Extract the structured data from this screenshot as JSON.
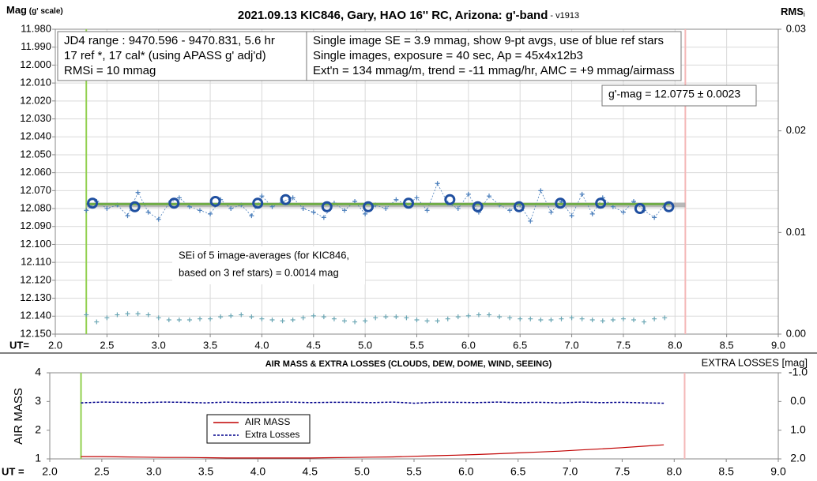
{
  "chart_data": [
    {
      "type": "scatter",
      "title": "2021.09.13 KIC846, Gary, HAO 16'' RC, Arizona: g'-band",
      "title_version": " - v1913",
      "y_label": "Mag",
      "y_label_note": " (g' scale)",
      "y2_label": "RMS",
      "y2_label_sub": "i",
      "x_label": "UT=",
      "xlim": [
        2.0,
        9.0
      ],
      "xticks": [
        {
          "value": 2.0,
          "label": "2.0"
        },
        {
          "value": 2.5,
          "label": "2.5"
        },
        {
          "value": 3.0,
          "label": "3.0"
        },
        {
          "value": 3.5,
          "label": "3.5"
        },
        {
          "value": 4.0,
          "label": "4.0"
        },
        {
          "value": 4.5,
          "label": "4.5"
        },
        {
          "value": 5.0,
          "label": "5.0"
        },
        {
          "value": 5.5,
          "label": "5.5"
        },
        {
          "value": 6.0,
          "label": "6.0"
        },
        {
          "value": 6.5,
          "label": "6.5"
        },
        {
          "value": 7.0,
          "label": "7.0"
        },
        {
          "value": 7.5,
          "label": "7.5"
        },
        {
          "value": 8.0,
          "label": "8.0"
        },
        {
          "value": 8.5,
          "label": "8.5"
        },
        {
          "value": 9.0,
          "label": "9.0"
        }
      ],
      "ylim": [
        12.15,
        11.98
      ],
      "yticks": [
        {
          "value": 11.98,
          "label": "11.980"
        },
        {
          "value": 11.99,
          "label": "11.990"
        },
        {
          "value": 12.0,
          "label": "12.000"
        },
        {
          "value": 12.01,
          "label": "12.010"
        },
        {
          "value": 12.02,
          "label": "12.020"
        },
        {
          "value": 12.03,
          "label": "12.030"
        },
        {
          "value": 12.04,
          "label": "12.040"
        },
        {
          "value": 12.05,
          "label": "12.050"
        },
        {
          "value": 12.06,
          "label": "12.060"
        },
        {
          "value": 12.07,
          "label": "12.070"
        },
        {
          "value": 12.08,
          "label": "12.080"
        },
        {
          "value": 12.09,
          "label": "12.090"
        },
        {
          "value": 12.1,
          "label": "12.100"
        },
        {
          "value": 12.11,
          "label": "12.110"
        },
        {
          "value": 12.12,
          "label": "12.120"
        },
        {
          "value": 12.13,
          "label": "12.130"
        },
        {
          "value": 12.14,
          "label": "12.140"
        },
        {
          "value": 12.15,
          "label": "12.150"
        }
      ],
      "y2lim": [
        0,
        0.03
      ],
      "y2ticks": [
        {
          "value": 0,
          "label": "0.00"
        },
        {
          "value": 0.01,
          "label": "0.01"
        },
        {
          "value": 0.02,
          "label": "0.02"
        },
        {
          "value": 0.03,
          "label": "0.03"
        }
      ],
      "grid": true,
      "vlines": [
        {
          "x": 2.3,
          "color": "#92d050"
        },
        {
          "x": 8.1,
          "color": "#f4b8b8"
        }
      ],
      "series": [
        {
          "mark": "band",
          "color": "#a6a6a6",
          "x": [
            2.3,
            8.1
          ],
          "values": [
            12.078,
            12.078
          ]
        },
        {
          "mark": "plus",
          "color": "#4a7ebb",
          "x": [
            2.3,
            2.4,
            2.5,
            2.6,
            2.7,
            2.8,
            2.9,
            3.0,
            3.1,
            3.2,
            3.3,
            3.4,
            3.5,
            3.6,
            3.7,
            3.8,
            3.9,
            4.0,
            4.1,
            4.2,
            4.3,
            4.4,
            4.5,
            4.6,
            4.7,
            4.8,
            4.9,
            5.0,
            5.1,
            5.2,
            5.3,
            5.4,
            5.5,
            5.6,
            5.7,
            5.8,
            5.9,
            6.0,
            6.1,
            6.2,
            6.3,
            6.4,
            6.5,
            6.6,
            6.7,
            6.8,
            6.9,
            7.0,
            7.1,
            7.2,
            7.3,
            7.4,
            7.5,
            7.6,
            7.7,
            7.8,
            7.9
          ],
          "values": [
            12.081,
            12.076,
            12.08,
            12.078,
            12.084,
            12.071,
            12.082,
            12.086,
            12.077,
            12.074,
            12.079,
            12.081,
            12.083,
            12.075,
            12.08,
            12.078,
            12.084,
            12.073,
            12.079,
            12.076,
            12.074,
            12.08,
            12.082,
            12.085,
            12.077,
            12.081,
            12.076,
            12.083,
            12.078,
            12.08,
            12.075,
            12.078,
            12.074,
            12.081,
            12.066,
            12.077,
            12.08,
            12.072,
            12.082,
            12.073,
            12.078,
            12.081,
            12.078,
            12.087,
            12.07,
            12.082,
            12.076,
            12.084,
            12.072,
            12.083,
            12.074,
            12.079,
            12.082,
            12.076,
            12.081,
            12.085,
            12.078
          ]
        },
        {
          "mark": "line",
          "color": "#70ad47",
          "x": [
            2.3,
            7.95
          ],
          "values": [
            12.0775,
            12.0775
          ]
        },
        {
          "mark": "circle",
          "color": "#1f4fa0",
          "x": [
            2.36,
            2.77,
            3.15,
            3.55,
            3.96,
            4.23,
            4.63,
            5.03,
            5.42,
            5.82,
            6.09,
            6.49,
            6.89,
            7.28,
            7.66,
            7.94
          ],
          "values": [
            12.077,
            12.079,
            12.077,
            12.076,
            12.077,
            12.075,
            12.079,
            12.079,
            12.077,
            12.075,
            12.079,
            12.079,
            12.077,
            12.077,
            12.08,
            12.079
          ]
        },
        {
          "mark": "plus",
          "axis": "y2",
          "color": "#6aa6b4",
          "x": [
            2.3,
            2.4,
            2.5,
            2.6,
            2.7,
            2.8,
            2.9,
            3.0,
            3.1,
            3.2,
            3.3,
            3.4,
            3.5,
            3.6,
            3.7,
            3.8,
            3.9,
            4.0,
            4.1,
            4.2,
            4.3,
            4.4,
            4.5,
            4.6,
            4.7,
            4.8,
            4.9,
            5.0,
            5.1,
            5.2,
            5.3,
            5.4,
            5.5,
            5.6,
            5.7,
            5.8,
            5.9,
            6.0,
            6.1,
            6.2,
            6.3,
            6.4,
            6.5,
            6.6,
            6.7,
            6.8,
            6.9,
            7.0,
            7.1,
            7.2,
            7.3,
            7.4,
            7.5,
            7.6,
            7.7,
            7.8,
            7.9
          ],
          "values": [
            0.0019,
            0.0012,
            0.0016,
            0.0019,
            0.002,
            0.002,
            0.0019,
            0.0016,
            0.0014,
            0.0014,
            0.0014,
            0.0015,
            0.0015,
            0.0017,
            0.0018,
            0.0019,
            0.0017,
            0.0015,
            0.0014,
            0.0013,
            0.0014,
            0.0016,
            0.0018,
            0.0017,
            0.0015,
            0.0013,
            0.0012,
            0.0013,
            0.0016,
            0.0017,
            0.0017,
            0.0016,
            0.0014,
            0.0013,
            0.0013,
            0.0015,
            0.0017,
            0.0018,
            0.0019,
            0.0019,
            0.0017,
            0.0016,
            0.0015,
            0.0015,
            0.0014,
            0.0014,
            0.0015,
            0.0016,
            0.0015,
            0.0014,
            0.0013,
            0.0014,
            0.0015,
            0.0014,
            0.0012,
            0.0015,
            0.0016
          ]
        }
      ],
      "annotations": [
        {
          "lines": [
            "JD4 range : 9470.596 - 9470.831,  5.6  hr",
            "17 ref *, 17 cal* (using APASS g' adj'd)",
            "RMSi = 10 mmag"
          ]
        },
        {
          "lines": [
            "Single image SE = 3.9 mmag, show  9-pt avgs, use of blue ref stars",
            "Single images, exposure = 40 sec, Ap = 45x4x12b3",
            "Ext'n = 134 mmag/m, trend = -11 mmag/hr, AMC = +9 mmag/airmass"
          ]
        },
        {
          "lines": [
            "g'-mag = 12.0775 ± 0.0023"
          ]
        },
        {
          "lines": [
            "SEi of 5 image-averages (for KIC846,",
            "based on 3 ref stars) = 0.0014 mag"
          ]
        }
      ]
    },
    {
      "type": "line",
      "title": "AIR MASS & EXTRA LOSSES (CLOUDS, DEW, DOME, WIND, SEEING)",
      "y_label": "AIR MASS",
      "y2_label": "EXTRA LOSSES [mag]",
      "x_label": "UT =",
      "xlim": [
        2.0,
        9.0
      ],
      "xticks": [
        {
          "value": 2.0,
          "label": "2.0"
        },
        {
          "value": 2.5,
          "label": "2.5"
        },
        {
          "value": 3.0,
          "label": "3.0"
        },
        {
          "value": 3.5,
          "label": "3.5"
        },
        {
          "value": 4.0,
          "label": "4.0"
        },
        {
          "value": 4.5,
          "label": "4.5"
        },
        {
          "value": 5.0,
          "label": "5.0"
        },
        {
          "value": 5.5,
          "label": "5.5"
        },
        {
          "value": 6.0,
          "label": "6.0"
        },
        {
          "value": 6.5,
          "label": "6.5"
        },
        {
          "value": 7.0,
          "label": "7.0"
        },
        {
          "value": 7.5,
          "label": "7.5"
        },
        {
          "value": 8.0,
          "label": "8.0"
        },
        {
          "value": 8.5,
          "label": "8.5"
        },
        {
          "value": 9.0,
          "label": "9.0"
        }
      ],
      "ylim": [
        1,
        4
      ],
      "yticks": [
        1,
        2,
        3,
        4
      ],
      "y2lim": [
        2,
        -1
      ],
      "y2ticks": [
        {
          "value": -1,
          "label": "-1.0"
        },
        {
          "value": 0,
          "label": "0.0"
        },
        {
          "value": 1,
          "label": "1.0"
        },
        {
          "value": 2,
          "label": "2.0"
        }
      ],
      "vlines": [
        {
          "x": 2.3,
          "color": "#92d050"
        },
        {
          "x": 8.1,
          "color": "#f4b8b8"
        }
      ],
      "series": [
        {
          "name": "AIR MASS",
          "color": "#c00000",
          "x": [
            2.3,
            2.5,
            2.7,
            2.9,
            3.1,
            3.3,
            3.5,
            3.7,
            3.9,
            4.1,
            4.3,
            4.5,
            4.7,
            4.9,
            5.1,
            5.3,
            5.5,
            5.7,
            5.9,
            6.1,
            6.3,
            6.5,
            6.7,
            6.9,
            7.1,
            7.3,
            7.5,
            7.7,
            7.9
          ],
          "values": [
            1.08,
            1.08,
            1.07,
            1.06,
            1.05,
            1.05,
            1.04,
            1.03,
            1.03,
            1.03,
            1.03,
            1.03,
            1.04,
            1.05,
            1.06,
            1.07,
            1.09,
            1.11,
            1.13,
            1.15,
            1.18,
            1.21,
            1.24,
            1.27,
            1.31,
            1.35,
            1.39,
            1.44,
            1.49
          ]
        },
        {
          "name": "Extra Losses",
          "color": "#00008b",
          "axis": "y2",
          "dashed": true,
          "x": [
            2.3,
            2.5,
            2.7,
            2.9,
            3.1,
            3.3,
            3.5,
            3.7,
            3.9,
            4.1,
            4.3,
            4.5,
            4.7,
            4.9,
            5.1,
            5.3,
            5.5,
            5.7,
            5.9,
            6.1,
            6.3,
            6.5,
            6.7,
            6.9,
            7.1,
            7.3,
            7.5,
            7.7,
            7.9
          ],
          "values": [
            0.05,
            0.02,
            0.03,
            0.04,
            0.02,
            0.03,
            0.05,
            0.02,
            0.04,
            0.03,
            0.02,
            0.04,
            0.03,
            0.03,
            0.04,
            0.02,
            0.06,
            0.03,
            0.03,
            0.04,
            0.02,
            0.04,
            0.03,
            0.05,
            0.02,
            0.04,
            0.03,
            0.05,
            0.06
          ]
        }
      ]
    }
  ]
}
